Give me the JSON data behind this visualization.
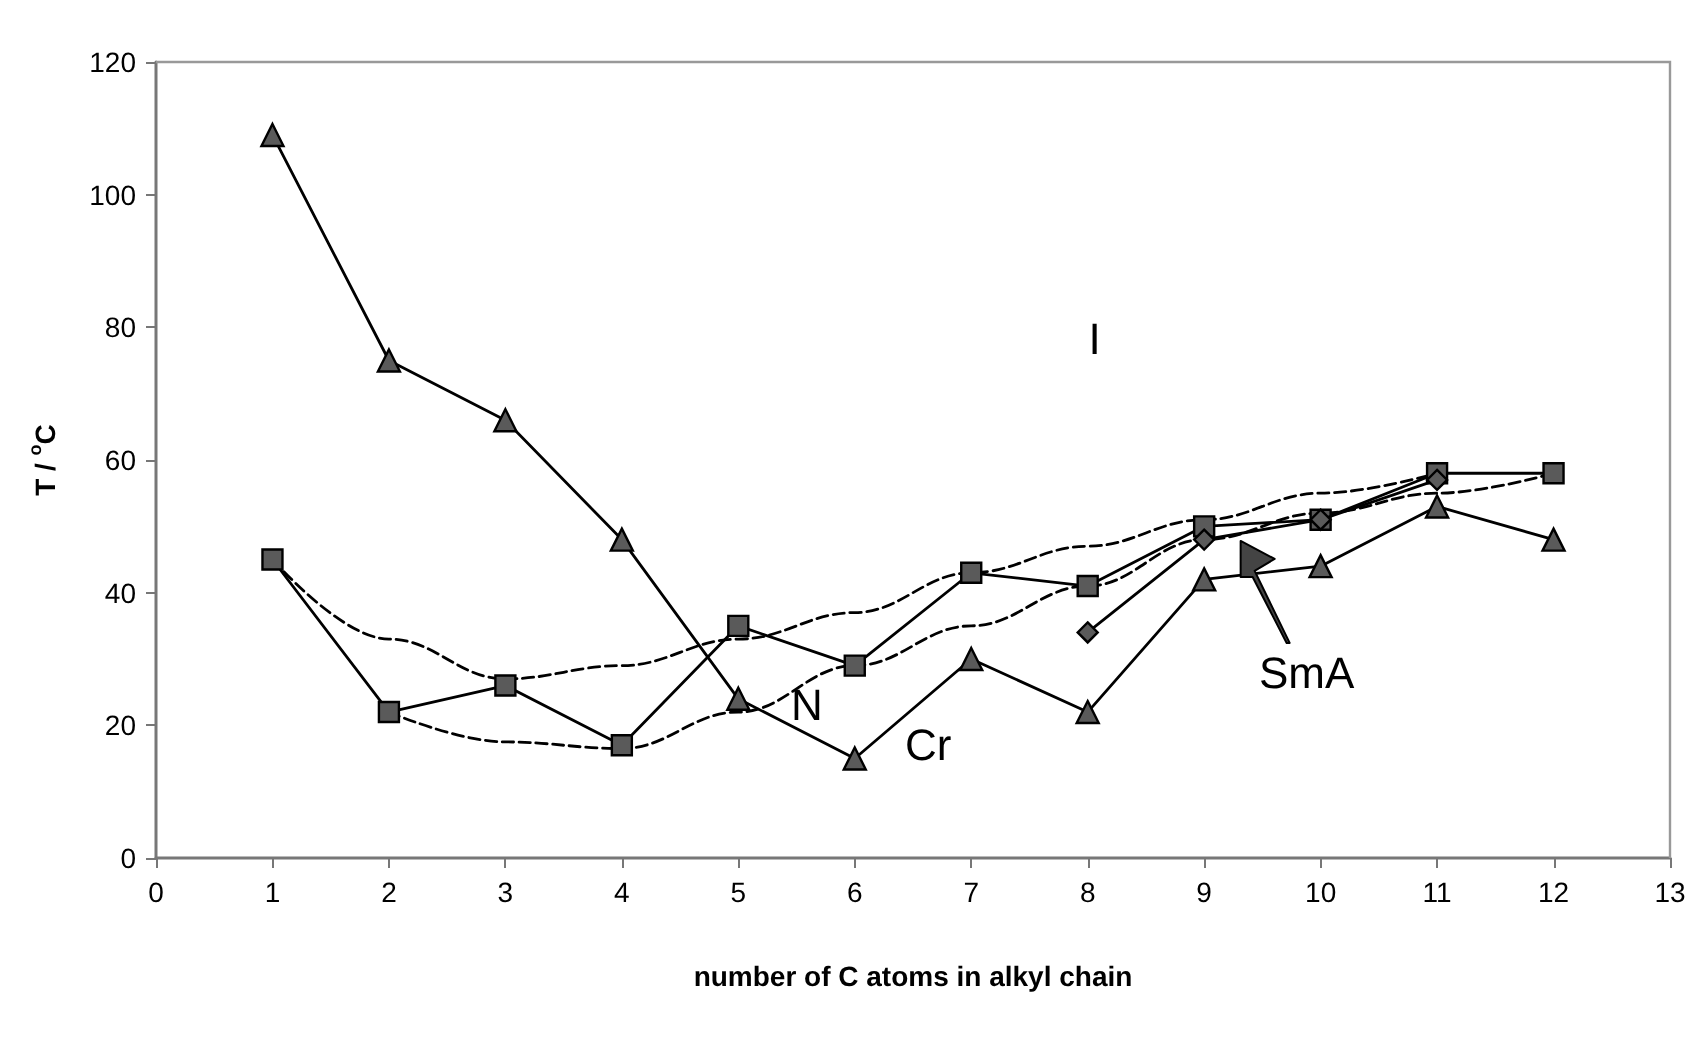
{
  "chart_data": {
    "type": "line",
    "xlabel": "number of C atoms in alkyl chain",
    "ylabel": "T / $^{o}$C",
    "xlim": [
      0,
      13
    ],
    "xticks": [
      0,
      1,
      2,
      3,
      4,
      5,
      6,
      7,
      8,
      9,
      10,
      11,
      12,
      13
    ],
    "ylim": [
      0,
      120
    ],
    "yticks": [
      0,
      20,
      40,
      60,
      80,
      100,
      120
    ],
    "grid": false,
    "series": [
      {
        "color": "#000000",
        "marker": "triangle",
        "line_style": "solid",
        "x": [
          1,
          2,
          3,
          4,
          5,
          6,
          7,
          8,
          9,
          10,
          11,
          12
        ],
        "values": [
          109,
          75,
          66,
          48,
          24,
          15,
          30,
          22,
          42,
          44,
          53,
          48
        ]
      },
      {
        "color": "#000000",
        "marker": "square",
        "line_style": "solid",
        "x": [
          1,
          2,
          3,
          4,
          5,
          6,
          7,
          8,
          9,
          10,
          11,
          12
        ],
        "values": [
          45,
          22,
          26,
          17,
          35,
          29,
          43,
          41,
          50,
          51,
          58,
          58
        ]
      },
      {
        "color": "#000000",
        "marker": "diamond",
        "line_style": "solid",
        "x": [
          8,
          9,
          10,
          11
        ],
        "values": [
          34,
          48,
          51,
          57
        ]
      },
      {
        "color": "#000000",
        "marker": "none",
        "line_style": "dashed",
        "x": [
          1,
          2,
          3,
          4,
          5,
          6,
          7,
          8,
          9,
          10,
          11
        ],
        "values": [
          45,
          33,
          27,
          29,
          33,
          37,
          43,
          47,
          51,
          55,
          58
        ]
      },
      {
        "color": "#000000",
        "marker": "none",
        "line_style": "dashed",
        "x": [
          2,
          3,
          4,
          5,
          6,
          7,
          8,
          9,
          10,
          11,
          12
        ],
        "values": [
          22,
          17.5,
          16.5,
          22,
          29,
          35,
          41,
          48,
          52,
          55,
          58
        ]
      }
    ],
    "annotations": [
      "I",
      "N",
      "Cr",
      "SmA"
    ]
  }
}
